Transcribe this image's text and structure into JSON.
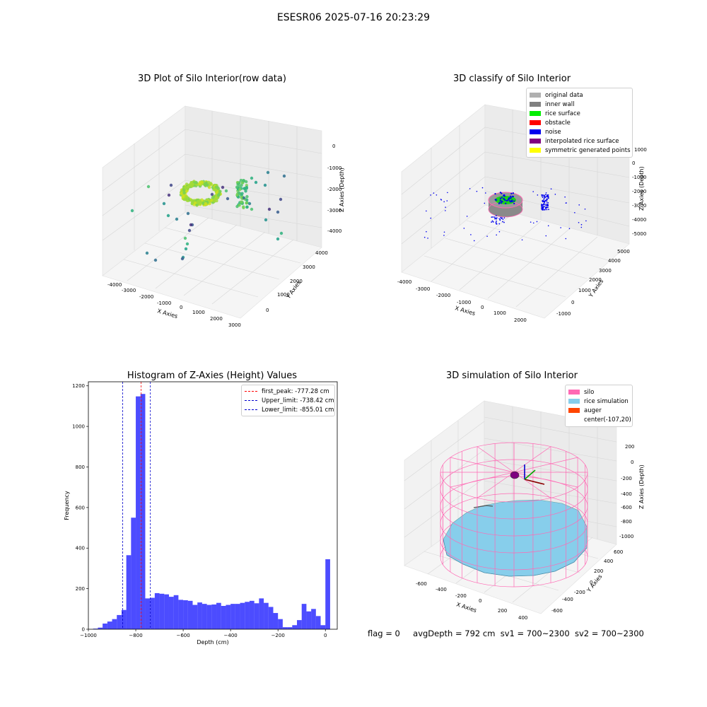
{
  "suptitle": "ESESR06 2025-07-16 20:23:29",
  "panels": {
    "raw": {
      "title": "3D Plot of Silo Interior(row data)",
      "xlabel": "X Axies",
      "ylabel": "Y Axies",
      "zlabel": "Z Axies (Depth)",
      "xticks": [
        "-4000",
        "-3000",
        "-2000",
        "-1000",
        "0",
        "1000",
        "2000",
        "3000"
      ],
      "yticks": [
        "0",
        "1000",
        "2000",
        "3000",
        "4000"
      ],
      "zticks": [
        "0",
        "-1000",
        "-2000",
        "-3000",
        "-4000"
      ]
    },
    "classify": {
      "title": "3D classify of Silo Interior",
      "xlabel": "X Axies",
      "ylabel": "Y Axies",
      "zlabel": "Z Axies (Depth)",
      "xticks": [
        "-4000",
        "-3000",
        "-2000",
        "-1000",
        "0",
        "1000",
        "2000"
      ],
      "yticks": [
        "-1000",
        "0",
        "1000",
        "2000",
        "3000",
        "4000",
        "5000"
      ],
      "zticks": [
        "1000",
        "0",
        "-1000",
        "-2000",
        "-3000",
        "-4000",
        "-5000"
      ],
      "legend": [
        {
          "label": "original data",
          "color": "#b0b0b0"
        },
        {
          "label": "inner wall",
          "color": "#808080"
        },
        {
          "label": "rice surface",
          "color": "#00ee00"
        },
        {
          "label": "obstacle",
          "color": "#ff0000"
        },
        {
          "label": "noise",
          "color": "#0000ee"
        },
        {
          "label": "interpolated rice surface",
          "color": "#800080"
        },
        {
          "label": "symmetric generated points",
          "color": "#ffff00"
        }
      ]
    },
    "simulation": {
      "title": "3D simulation of Silo Interior",
      "xlabel": "X Axies",
      "ylabel": "Y Axies",
      "zlabel": "Z Axies (Depth)",
      "xticks": [
        "-600",
        "-400",
        "-200",
        "0",
        "200",
        "400"
      ],
      "yticks": [
        "-600",
        "-400",
        "-200",
        "0",
        "200",
        "400",
        "600"
      ],
      "zticks": [
        "200",
        "0",
        "-200",
        "-400",
        "-600",
        "-800",
        "-1000"
      ],
      "legend": [
        {
          "label": "silo",
          "color": "#ff69b4"
        },
        {
          "label": "rice simulation",
          "color": "#87ceeb"
        },
        {
          "label": "auger",
          "color": "#ff4500"
        },
        {
          "label": "center(-107,20)",
          "color": ""
        }
      ]
    }
  },
  "chart_data": {
    "type": "bar",
    "title": "Histogram of Z-Axies (Height) Values",
    "xlabel": "Depth (cm)",
    "ylabel": "Frequency",
    "xlim": [
      -1000,
      50
    ],
    "ylim": [
      0,
      1220
    ],
    "xticks": [
      -1000,
      -800,
      -600,
      -400,
      -200,
      0
    ],
    "yticks": [
      0,
      200,
      400,
      600,
      800,
      1000,
      1200
    ],
    "bin_start": -980,
    "bin_width": 20,
    "bar_color": "#0000ff",
    "values": [
      3,
      8,
      28,
      38,
      50,
      70,
      95,
      365,
      550,
      1148,
      1160,
      152,
      155,
      178,
      175,
      172,
      160,
      168,
      145,
      143,
      140,
      120,
      132,
      125,
      120,
      122,
      130,
      115,
      120,
      125,
      125,
      130,
      135,
      140,
      128,
      152,
      130,
      110,
      80,
      50,
      10,
      10,
      20,
      45,
      125,
      88,
      100,
      65,
      20,
      345
    ],
    "vlines": [
      {
        "x": -777.28,
        "color": "#ff0000",
        "label": "first_peak: -777.28 cm"
      },
      {
        "x": -738.42,
        "color": "#0000cc",
        "label": "Upper_limit: -738.42 cm"
      },
      {
        "x": -855.01,
        "color": "#0000cc",
        "label": "Lower_limit: -855.01 cm"
      }
    ],
    "legend_position": "upper right"
  },
  "footer": {
    "flag": "flag = 0",
    "avg_depth": "avgDepth = 792 cm",
    "sv1": "sv1 = 700~2300",
    "sv2": "sv2 = 700~2300"
  }
}
